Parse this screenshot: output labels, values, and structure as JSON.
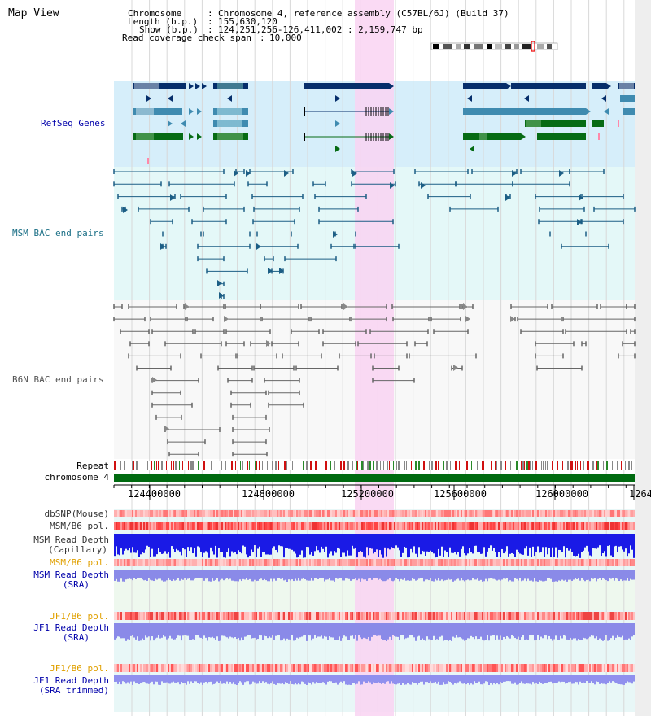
{
  "title": "Map View",
  "info": {
    "chromosome_key": "Chromosome",
    "chromosome_val": "Chromosome 4, reference assembly (C57BL/6J) (Build 37)",
    "length_key": "Length (b.p.)",
    "length_val": "155,630,120",
    "show_key": "Show (b.p.)",
    "show_val": "124,251,256-126,411,002 : 2,159,747 bp",
    "span_key": "Read coverage check span",
    "span_val": "10,000"
  },
  "tracks": {
    "refseq": "RefSeq Genes",
    "msm_bac": "MSM BAC end pairs",
    "b6n_bac": "B6N BAC end pairs",
    "repeat": "Repeat",
    "chromosome": "chromosome 4",
    "dbsnp": "dbSNP(Mouse)",
    "msm_b6_pol": "MSM/B6 pol.",
    "msm_depth_cap_1": "MSM Read Depth",
    "msm_depth_cap_2": "(Capillary)",
    "msm_b6_pol_sra": "MSM/B6 pol.",
    "msm_depth_sra_1": "MSM Read Depth",
    "msm_depth_sra_2": "(SRA)",
    "jf1_pol": "JF1/B6 pol.",
    "jf1_depth_1": "JF1 Read Depth",
    "jf1_depth_2": "(SRA)",
    "jf1_pol_trim": "JF1/B6 pol.",
    "jf1_trim_1": "JF1 Read Depth",
    "jf1_trim_2": "(SRA trimmed)"
  },
  "axis": {
    "ticks": [
      "124400000",
      "124800000",
      "125200000",
      "125600000",
      "126000000",
      "1264"
    ]
  },
  "colors": {
    "gene_dark": "#062e6b",
    "gene_mid": "#3f8bb0",
    "gene_green": "#066b14",
    "refseq_bg": "#d6eefa",
    "msm_bg": "#e4f8f8",
    "highlight": "#f9d4f2",
    "bac_msm": "#1c5e85",
    "bac_b6n": "#666666",
    "orange": "#e0a000",
    "blue_label": "#0000aa",
    "teal_label": "#1b6f86"
  }
}
